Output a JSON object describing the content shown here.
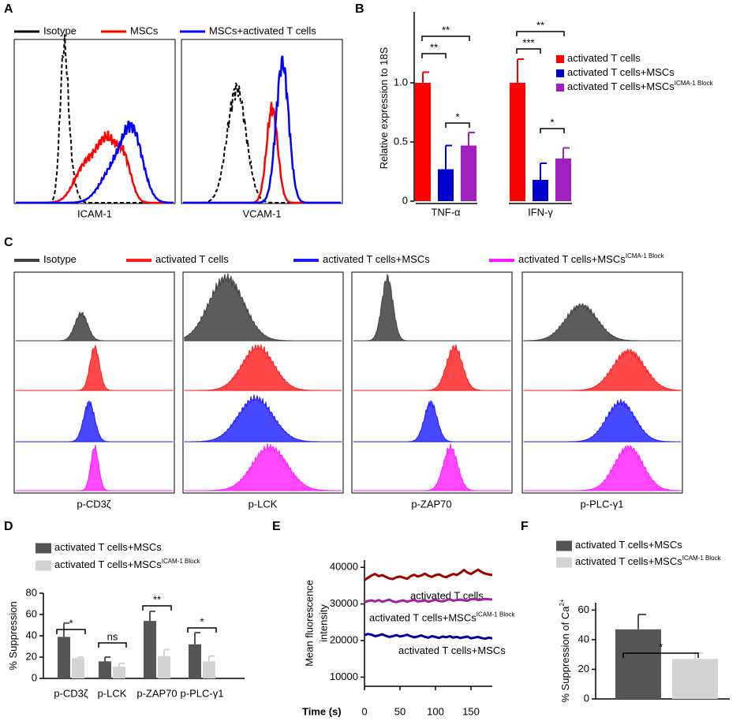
{
  "chart_data": [
    {
      "type": "flow-overlay",
      "panel": "A",
      "series": [
        {
          "name": "Isotype",
          "color": "#000000"
        },
        {
          "name": "MSCs",
          "color": "#ff0000"
        },
        {
          "name": "MSCs+activated T cells",
          "color": "#0000ff"
        }
      ],
      "xlabels": [
        "ICAM-1",
        "VCAM-1"
      ]
    },
    {
      "type": "bar",
      "panel": "B",
      "ylabel": "Relative expression to 18S",
      "categories": [
        "TNF-α",
        "IFN-γ"
      ],
      "series": [
        {
          "name": "activated T cells",
          "color": "#ff0000",
          "values": [
            1.0,
            1.0
          ],
          "errors": [
            0.09,
            0.2
          ]
        },
        {
          "name": "activated T cells+MSCs",
          "color": "#0000cc",
          "values": [
            0.27,
            0.18
          ],
          "errors": [
            0.2,
            0.14
          ]
        },
        {
          "name": "activated T cells+MSCs",
          "name_superscript": "ICMA-1 Block",
          "color": "#a020c0",
          "values": [
            0.47,
            0.36
          ],
          "errors": [
            0.11,
            0.09
          ]
        }
      ],
      "ylim": [
        0,
        1.6
      ],
      "yticks": [
        0,
        0.5,
        {
          "value": 1,
          "label": "1.0"
        }
      ],
      "annotations": [
        "**",
        "**",
        "*",
        "**",
        "***",
        "*"
      ]
    },
    {
      "type": "flow-stack",
      "panel": "C",
      "series": [
        {
          "name": "Isotype",
          "color": "#404040"
        },
        {
          "name": "activated T cells",
          "color": "#ff1a1a"
        },
        {
          "name": "activated T cells+MSCs",
          "color": "#1a1aff"
        },
        {
          "name": "activated T cells+MSCs",
          "name_superscript": "ICMA-1 Block",
          "color": "#ff1aff"
        }
      ],
      "xlabels": [
        "p-CD3ζ",
        "p-LCK",
        "p-ZAP70",
        "p-PLC-γ1"
      ]
    },
    {
      "type": "bar",
      "panel": "D",
      "ylabel": "% Suppression",
      "categories": [
        "p-CD3ζ",
        "p-LCK",
        "p-ZAP70",
        "p-PLC-γ1"
      ],
      "series": [
        {
          "name": "activated T cells+MSCs",
          "color": "#555555",
          "values": [
            39,
            16,
            54,
            32
          ],
          "errors": [
            13,
            4,
            9,
            11
          ]
        },
        {
          "name": "activated T cells+MSCs",
          "name_superscript": "ICAM-1 Block",
          "color": "#d3d3d3",
          "values": [
            19,
            11,
            21,
            16
          ],
          "errors": [
            1,
            3,
            6,
            5
          ]
        }
      ],
      "ylim": [
        0,
        80
      ],
      "yticks": [
        0,
        20,
        40,
        60,
        80
      ],
      "annotations": [
        "*",
        "ns",
        "**",
        "*"
      ]
    },
    {
      "type": "line",
      "panel": "E",
      "ylabel_lines": [
        "Mean fluorescence",
        "intensity"
      ],
      "xlabel": "Time (s)",
      "x": [
        0,
        5,
        10,
        15,
        20,
        25,
        30,
        35,
        40,
        45,
        50,
        55,
        60,
        65,
        70,
        75,
        80,
        85,
        90,
        95,
        100,
        105,
        110,
        115,
        120,
        125,
        130,
        135,
        140,
        145,
        150,
        155,
        160,
        165,
        170,
        175,
        180
      ],
      "series": [
        {
          "name": "activated T cells",
          "color": "#a00000",
          "values": [
            36500,
            37200,
            37800,
            38200,
            37600,
            37900,
            37400,
            37000,
            36800,
            37300,
            37500,
            37200,
            36900,
            37600,
            38000,
            37500,
            37800,
            38300,
            37700,
            37400,
            37900,
            38100,
            37600,
            37300,
            37800,
            38200,
            37900,
            38500,
            39300,
            38600,
            38200,
            38800,
            39400,
            38700,
            38300,
            38100,
            37900
          ]
        },
        {
          "name": "activated T cells+MSCs",
          "name_superscript": "ICAM-1 Block",
          "color": "#a020a0",
          "values": [
            30500,
            30800,
            31000,
            30700,
            31100,
            30600,
            30900,
            31200,
            30700,
            30500,
            30800,
            31000,
            30600,
            30900,
            31100,
            30700,
            30800,
            31000,
            30600,
            30900,
            31200,
            30800,
            30700,
            31000,
            31300,
            30900,
            31100,
            31200,
            31000,
            30900,
            31300,
            31400,
            31100,
            31200,
            31400,
            31300,
            31200
          ]
        },
        {
          "name": "activated T cells+MSCs",
          "color": "#00009a",
          "values": [
            21500,
            21800,
            21600,
            21200,
            21400,
            21700,
            21300,
            21000,
            21200,
            21500,
            21100,
            21300,
            21600,
            21200,
            20900,
            21100,
            21400,
            21000,
            20800,
            21200,
            21000,
            20700,
            21100,
            20900,
            21200,
            20800,
            21000,
            20700,
            20900,
            21100,
            20600,
            20800,
            21000,
            20700,
            20500,
            20800,
            20600
          ]
        }
      ],
      "xlim": [
        0,
        180
      ],
      "xticks": [
        0,
        50,
        100,
        150
      ],
      "ylim": [
        7500,
        42000
      ],
      "yticks": [
        10000,
        20000,
        30000,
        40000
      ]
    },
    {
      "type": "bar",
      "panel": "F",
      "ylabel": "% Suppression of Ca",
      "ylabel_superscript": "2+",
      "series": [
        {
          "name": "activated T cells+MSCs",
          "color": "#555555",
          "values": [
            47
          ],
          "errors": [
            10
          ]
        },
        {
          "name": "activated T cells+MSCs",
          "name_superscript": "ICAM-1 Block",
          "color": "#d3d3d3",
          "values": [
            27
          ],
          "errors": [
            4
          ]
        }
      ],
      "ylim": [
        0,
        65
      ],
      "yticks": [
        0,
        20,
        40,
        60
      ],
      "annotations": [
        "*"
      ]
    }
  ]
}
